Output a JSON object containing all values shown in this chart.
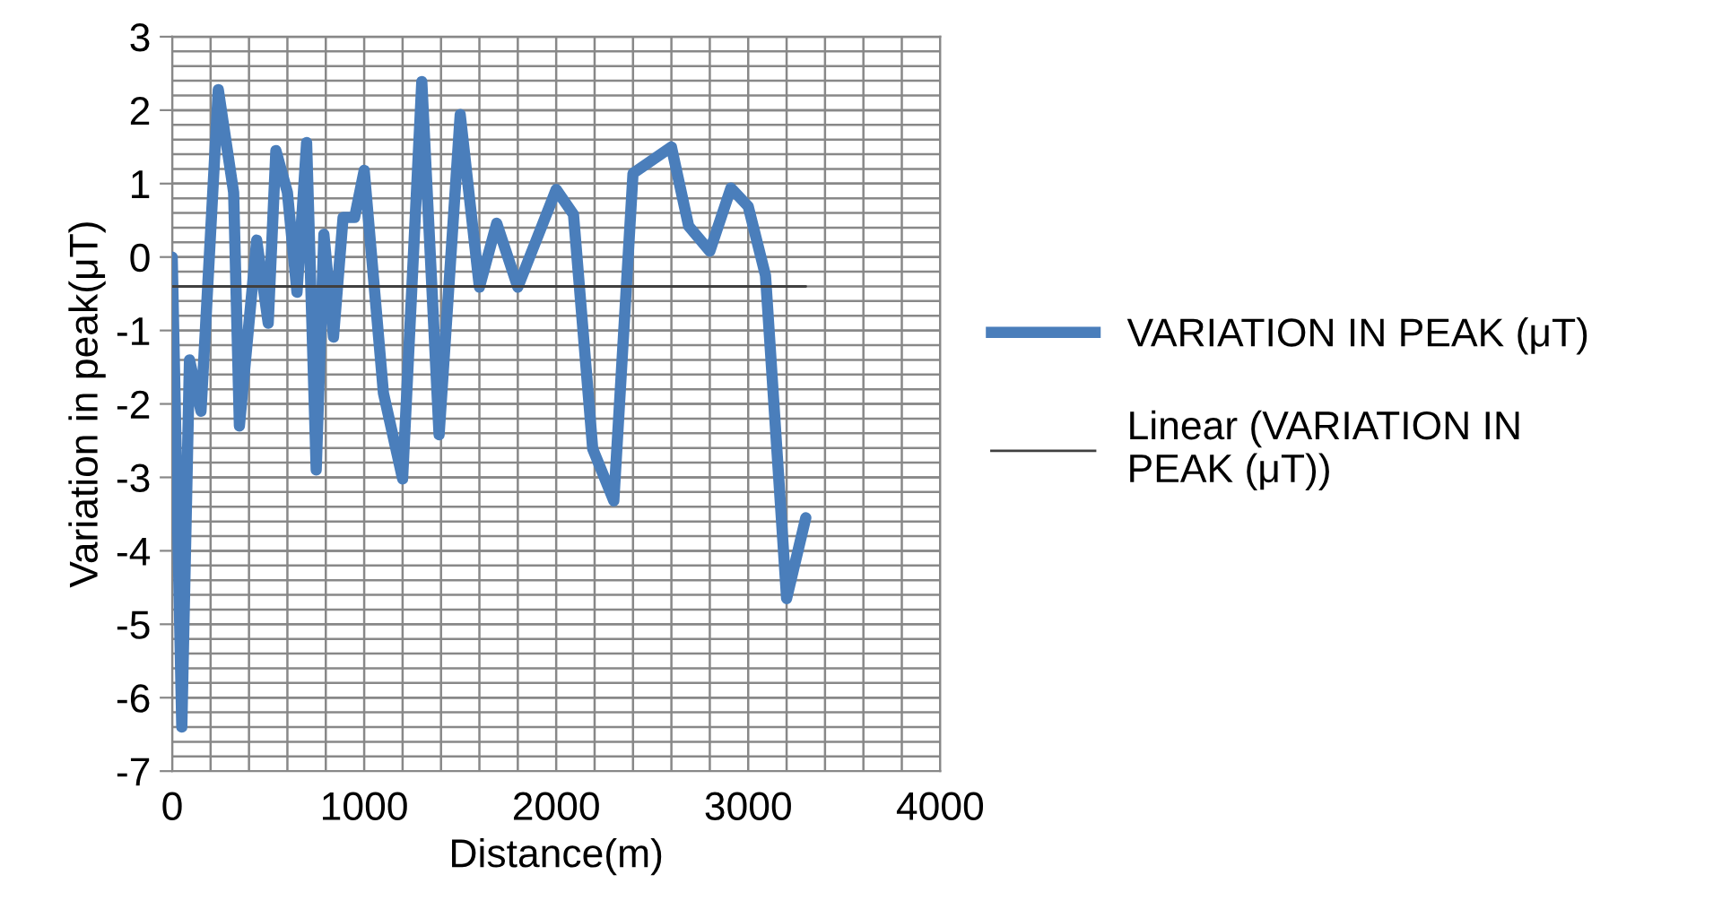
{
  "chart_data": {
    "type": "line",
    "xlabel": "Distance(m)",
    "ylabel": "Variation in peak(μT)",
    "series": [
      {
        "name": "VARIATION IN PEAK (μT)",
        "color": "#4a7ebb",
        "x": [
          0,
          50,
          90,
          150,
          240,
          320,
          350,
          440,
          500,
          540,
          600,
          650,
          700,
          750,
          790,
          840,
          890,
          950,
          1000,
          1100,
          1200,
          1300,
          1390,
          1500,
          1600,
          1690,
          1800,
          2000,
          2090,
          2190,
          2300,
          2400,
          2600,
          2690,
          2800,
          2910,
          3000,
          3090,
          3200,
          3300
        ],
        "values": [
          0.0,
          -6.4,
          -1.4,
          -2.1,
          2.28,
          0.88,
          -2.3,
          0.23,
          -0.9,
          1.45,
          0.88,
          -0.48,
          1.56,
          -2.9,
          0.31,
          -1.09,
          0.54,
          0.54,
          1.18,
          -1.85,
          -3.02,
          2.39,
          -2.42,
          1.94,
          -0.41,
          0.46,
          -0.41,
          0.92,
          0.58,
          -2.61,
          -3.32,
          1.14,
          1.5,
          0.42,
          0.08,
          0.94,
          0.69,
          -0.25,
          -4.65,
          -3.55
        ]
      },
      {
        "name": "Linear (VARIATION IN PEAK (μT))",
        "color": "#404040",
        "type": "line",
        "x": [
          0,
          3300
        ],
        "values": [
          -0.4,
          -0.4
        ]
      }
    ],
    "xlim": [
      0,
      4000
    ],
    "ylim": [
      -7,
      3
    ],
    "xticks": [
      0,
      {
        "value": 200,
        "label": null
      },
      {
        "value": 400,
        "label": null
      },
      {
        "value": 600,
        "label": null
      },
      {
        "value": 800,
        "label": null
      },
      1000,
      {
        "value": 1200,
        "label": null
      },
      {
        "value": 1400,
        "label": null
      },
      {
        "value": 1600,
        "label": null
      },
      {
        "value": 1800,
        "label": null
      },
      2000,
      {
        "value": 2200,
        "label": null
      },
      {
        "value": 2400,
        "label": null
      },
      {
        "value": 2600,
        "label": null
      },
      {
        "value": 2800,
        "label": null
      },
      3000,
      {
        "value": 3200,
        "label": null
      },
      {
        "value": 3400,
        "label": null
      },
      {
        "value": 3600,
        "label": null
      },
      {
        "value": 3800,
        "label": null
      },
      4000
    ],
    "yticks": [
      -7,
      -6,
      -5,
      -4,
      -3,
      -2,
      -1,
      0,
      1,
      2,
      3
    ],
    "grid": true,
    "legend": "right",
    "marker": "none",
    "line_style": "solid"
  }
}
